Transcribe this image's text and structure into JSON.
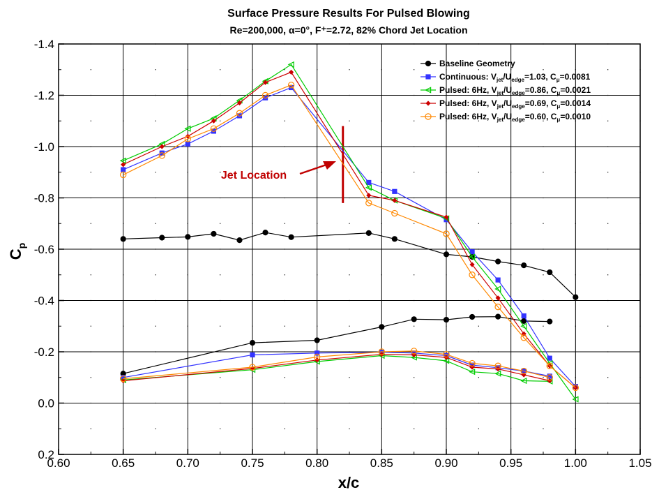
{
  "chart_data": {
    "type": "line",
    "title": "Surface Pressure Results For Pulsed Blowing",
    "subtitle": "Re=200,000, α=0°, F⁺=2.72, 82% Chord Jet Location",
    "xlabel": "x/c",
    "ylabel": "Cp",
    "xlim": [
      0.6,
      1.05
    ],
    "ylim": [
      -1.4,
      0.2
    ],
    "y_inverted": true,
    "x_ticks": [
      "0.60",
      "0.65",
      "0.70",
      "0.75",
      "0.80",
      "0.85",
      "0.90",
      "0.95",
      "1.00",
      "1.05"
    ],
    "y_ticks": [
      "-1.4",
      "-1.2",
      "-1.0",
      "-0.8",
      "-0.6",
      "-0.4",
      "-0.2",
      "0.0",
      "0.2"
    ],
    "grid": true,
    "legend_position": "top-right",
    "annotation": {
      "text": "Jet Location",
      "x": 0.82,
      "y_range": [
        -1.08,
        -0.78
      ],
      "color": "#c00000"
    },
    "series": [
      {
        "name": "Baseline Geometry",
        "legend_parts": [
          {
            "t": "Baseline Geometry"
          }
        ],
        "color": "#000000",
        "marker": "circle-filled",
        "segments": [
          {
            "x": [
              0.65,
              0.68,
              0.7,
              0.72,
              0.74,
              0.76,
              0.78,
              0.84,
              0.86,
              0.9,
              0.92,
              0.94,
              0.96,
              0.98,
              1.0
            ],
            "y": [
              -0.64,
              -0.645,
              -0.648,
              -0.66,
              -0.635,
              -0.665,
              -0.647,
              -0.663,
              -0.64,
              -0.58,
              -0.57,
              -0.552,
              -0.537,
              -0.51,
              -0.413
            ]
          },
          {
            "x": [
              0.65,
              0.75,
              0.8,
              0.85,
              0.875,
              0.9,
              0.92,
              0.94,
              0.96,
              0.98
            ],
            "y": [
              -0.115,
              -0.235,
              -0.245,
              -0.297,
              -0.327,
              -0.325,
              -0.336,
              -0.337,
              -0.32,
              -0.318
            ]
          }
        ]
      },
      {
        "name": "Continuous: Vjet/Uedge=1.03, Cμ=0.0081",
        "legend_parts": [
          {
            "t": "Continuous: V"
          },
          {
            "t": "jet",
            "sub": true
          },
          {
            "t": "/U"
          },
          {
            "t": "edge",
            "sub": true
          },
          {
            "t": "=1.03, C"
          },
          {
            "t": "μ",
            "sub": true
          },
          {
            "t": "=0.0081"
          }
        ],
        "color": "#3333ff",
        "marker": "square-filled",
        "segments": [
          {
            "x": [
              0.65,
              0.68,
              0.7,
              0.72,
              0.74,
              0.76,
              0.78,
              0.84,
              0.86,
              0.9,
              0.92,
              0.94,
              0.96,
              0.98,
              1.0
            ],
            "y": [
              -0.91,
              -0.975,
              -1.01,
              -1.06,
              -1.12,
              -1.19,
              -1.23,
              -0.86,
              -0.825,
              -0.715,
              -0.59,
              -0.48,
              -0.34,
              -0.175,
              -0.065
            ]
          },
          {
            "x": [
              0.65,
              0.75,
              0.8,
              0.85,
              0.875,
              0.9,
              0.92,
              0.94,
              0.96,
              0.98
            ],
            "y": [
              -0.1,
              -0.188,
              -0.195,
              -0.198,
              -0.195,
              -0.185,
              -0.148,
              -0.138,
              -0.125,
              -0.105
            ]
          }
        ]
      },
      {
        "name": "Pulsed: 6Hz, Vjet/Uedge=0.86, Cμ=0.0021",
        "legend_parts": [
          {
            "t": "Pulsed: 6Hz, V"
          },
          {
            "t": "jet",
            "sub": true
          },
          {
            "t": "/U"
          },
          {
            "t": "edge",
            "sub": true
          },
          {
            "t": "=0.86, C"
          },
          {
            "t": "μ",
            "sub": true
          },
          {
            "t": "=0.0021"
          }
        ],
        "color": "#00cc00",
        "marker": "triangle-left-open",
        "segments": [
          {
            "x": [
              0.65,
              0.68,
              0.7,
              0.72,
              0.74,
              0.76,
              0.78,
              0.84,
              0.86,
              0.9,
              0.92,
              0.94,
              0.96,
              0.98,
              1.0
            ],
            "y": [
              -0.945,
              -1.01,
              -1.07,
              -1.11,
              -1.18,
              -1.255,
              -1.32,
              -0.84,
              -0.79,
              -0.72,
              -0.57,
              -0.445,
              -0.3,
              -0.155,
              -0.015
            ]
          },
          {
            "x": [
              0.65,
              0.75,
              0.8,
              0.85,
              0.875,
              0.9,
              0.92,
              0.94,
              0.96,
              0.98
            ],
            "y": [
              -0.09,
              -0.13,
              -0.162,
              -0.185,
              -0.178,
              -0.165,
              -0.122,
              -0.115,
              -0.087,
              -0.085
            ]
          }
        ]
      },
      {
        "name": "Pulsed: 6Hz, Vjet/Uedge=0.69, Cμ=0.0014",
        "legend_parts": [
          {
            "t": "Pulsed: 6Hz, V"
          },
          {
            "t": "jet",
            "sub": true
          },
          {
            "t": "/U"
          },
          {
            "t": "edge",
            "sub": true
          },
          {
            "t": "=0.69, C"
          },
          {
            "t": "μ",
            "sub": true
          },
          {
            "t": "=0.0014"
          }
        ],
        "color": "#cc0000",
        "marker": "diamond-filled",
        "segments": [
          {
            "x": [
              0.65,
              0.68,
              0.7,
              0.72,
              0.74,
              0.76,
              0.78,
              0.84,
              0.86,
              0.9,
              0.92,
              0.94,
              0.96,
              0.98,
              1.0
            ],
            "y": [
              -0.93,
              -1.0,
              -1.04,
              -1.1,
              -1.17,
              -1.25,
              -1.29,
              -0.81,
              -0.79,
              -0.725,
              -0.54,
              -0.41,
              -0.27,
              -0.145,
              -0.06
            ]
          },
          {
            "x": [
              0.65,
              0.75,
              0.8,
              0.85,
              0.875,
              0.9,
              0.92,
              0.94,
              0.96,
              0.98
            ],
            "y": [
              -0.087,
              -0.135,
              -0.168,
              -0.19,
              -0.188,
              -0.178,
              -0.14,
              -0.133,
              -0.11,
              -0.087
            ]
          }
        ]
      },
      {
        "name": "Pulsed: 6Hz, Vjet/Uedge=0.60, Cμ=0.0010",
        "legend_parts": [
          {
            "t": "Pulsed: 6Hz, V"
          },
          {
            "t": "jet",
            "sub": true
          },
          {
            "t": "/U"
          },
          {
            "t": "edge",
            "sub": true
          },
          {
            "t": "=0.60, C"
          },
          {
            "t": "μ",
            "sub": true
          },
          {
            "t": "=0.0010"
          }
        ],
        "color": "#ff8800",
        "marker": "circle-open",
        "segments": [
          {
            "x": [
              0.65,
              0.68,
              0.7,
              0.72,
              0.74,
              0.76,
              0.78,
              0.84,
              0.86,
              0.9,
              0.92,
              0.94,
              0.96,
              0.98,
              1.0
            ],
            "y": [
              -0.89,
              -0.965,
              -1.03,
              -1.07,
              -1.13,
              -1.2,
              -1.24,
              -0.78,
              -0.74,
              -0.66,
              -0.5,
              -0.375,
              -0.255,
              -0.145,
              -0.06
            ]
          },
          {
            "x": [
              0.65,
              0.75,
              0.8,
              0.85,
              0.875,
              0.9,
              0.92,
              0.94,
              0.96,
              0.98
            ],
            "y": [
              -0.095,
              -0.14,
              -0.18,
              -0.2,
              -0.203,
              -0.19,
              -0.155,
              -0.145,
              -0.125,
              -0.1
            ]
          }
        ]
      }
    ]
  }
}
